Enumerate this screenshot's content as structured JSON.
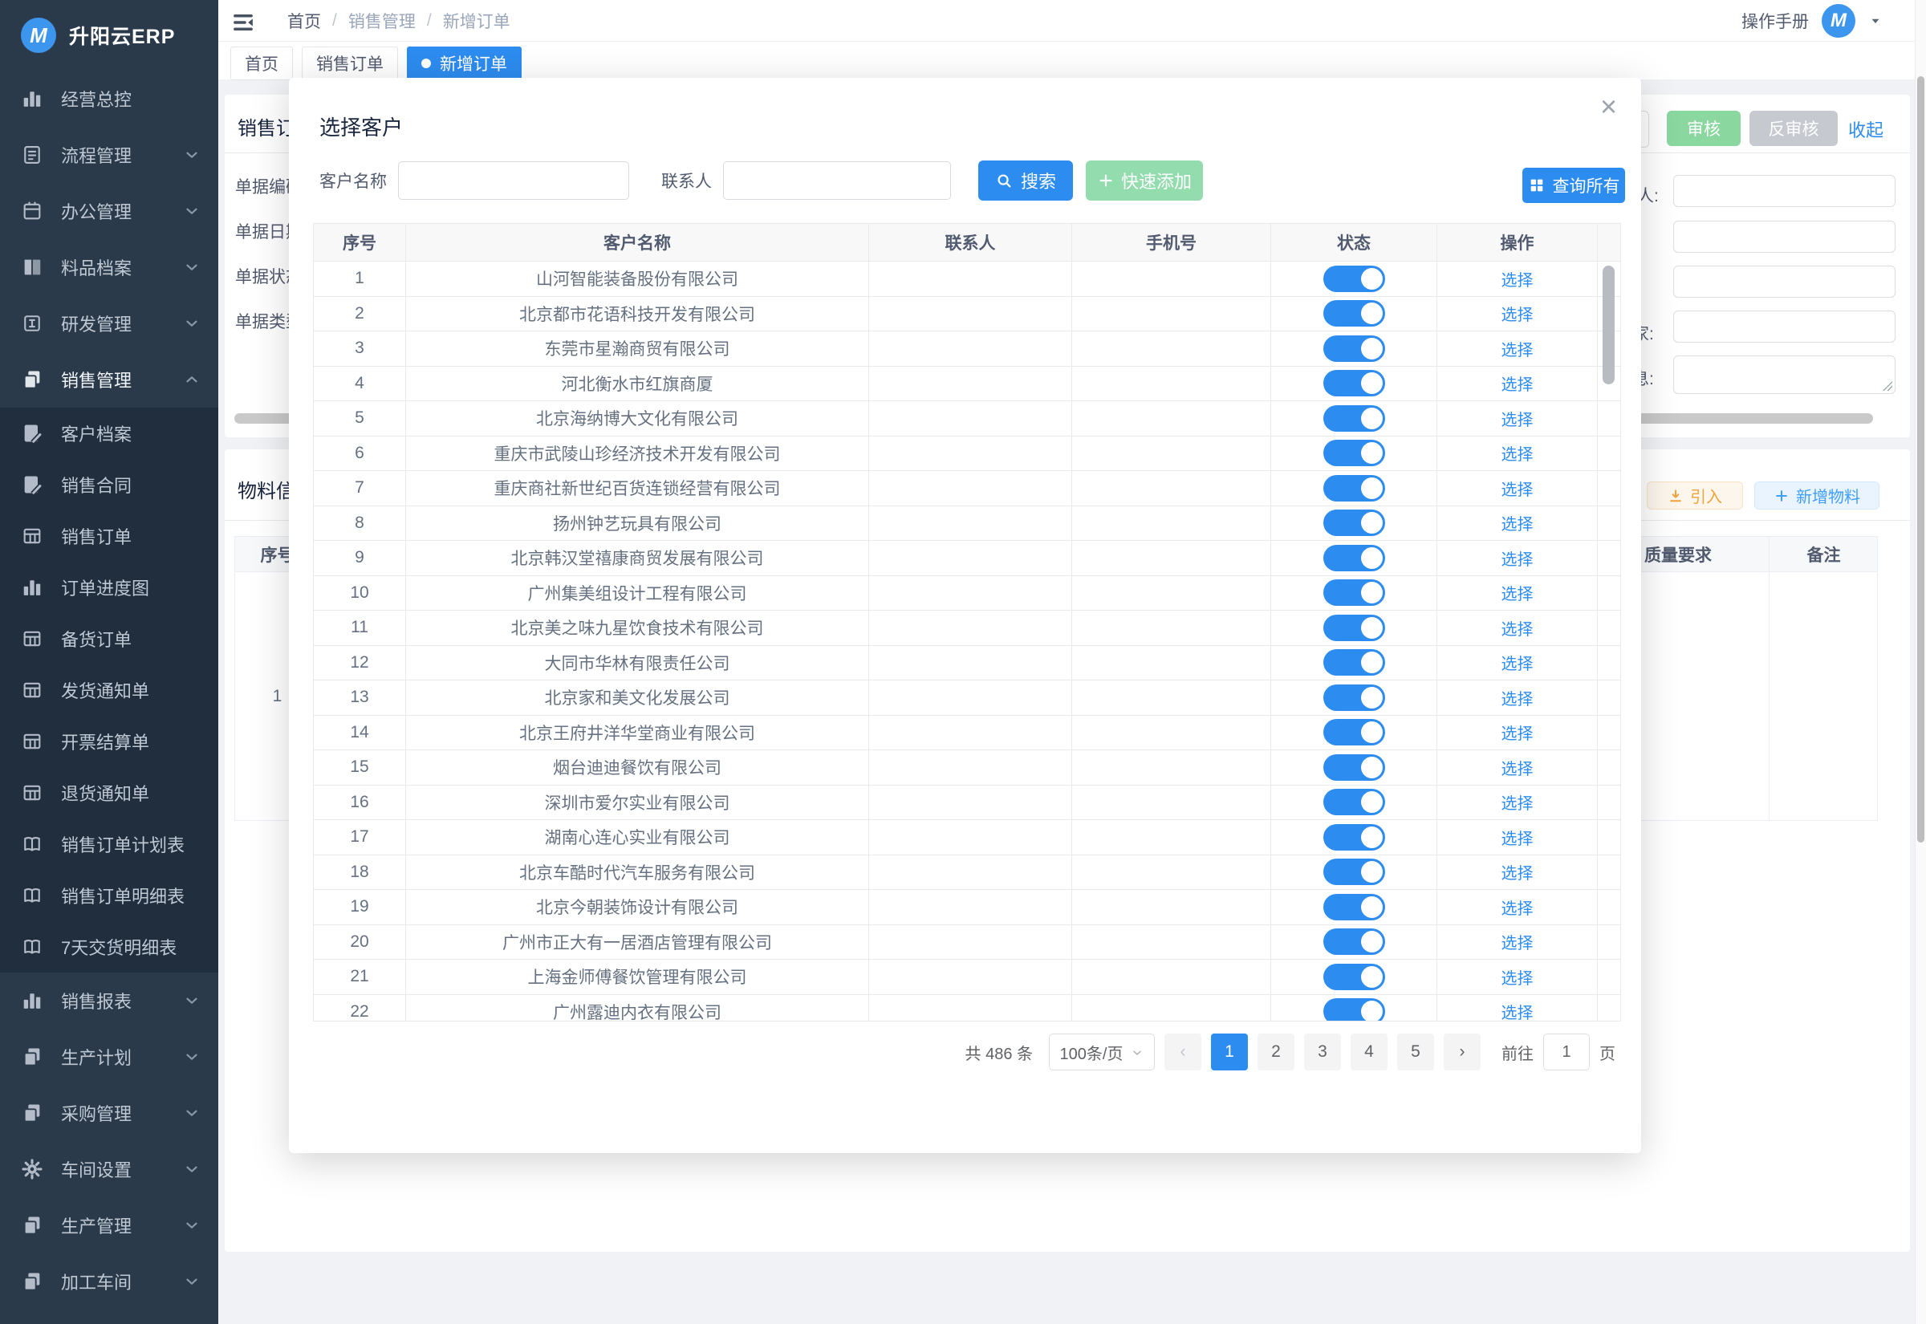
{
  "app": {
    "title": "升阳云ERP",
    "logo_letter": "M"
  },
  "colors": {
    "primary": "#2d8cf0",
    "sidebar_bg": "#2b3a4a",
    "submenu_bg": "#202e3e",
    "audit_green": "#8bd7a0",
    "quick_add_green": "#92dcae",
    "gray_button": "#c6c9cf",
    "warning_plain": "#f0a43b",
    "info_plain": "#409eff",
    "toggle_on": "#2d8cf0"
  },
  "header": {
    "manual": "操作手册",
    "avatar_letter": "M"
  },
  "breadcrumb": {
    "items": [
      "首页",
      "销售管理",
      "新增订单"
    ],
    "sep": "/"
  },
  "tabs": [
    {
      "label": "首页",
      "active": false
    },
    {
      "label": "销售订单",
      "active": false
    },
    {
      "label": "新增订单",
      "active": true
    }
  ],
  "sidebar": {
    "items_top": [
      {
        "label": "经营总控",
        "icon": "chart-bar",
        "arrow": null,
        "active": false
      },
      {
        "label": "流程管理",
        "icon": "doc-flow",
        "arrow": "down",
        "active": false
      },
      {
        "label": "办公管理",
        "icon": "calendar",
        "arrow": "down",
        "active": false
      },
      {
        "label": "料品档案",
        "icon": "book",
        "arrow": "down",
        "active": false
      },
      {
        "label": "研发管理",
        "icon": "square-i",
        "arrow": "down",
        "active": false
      },
      {
        "label": "销售管理",
        "icon": "pages",
        "arrow": "up",
        "active": true
      }
    ],
    "submenu": [
      {
        "label": "客户档案",
        "icon": "doc-edit"
      },
      {
        "label": "销售合同",
        "icon": "doc-edit"
      },
      {
        "label": "销售订单",
        "icon": "table"
      },
      {
        "label": "订单进度图",
        "icon": "chart-bar"
      },
      {
        "label": "备货订单",
        "icon": "table"
      },
      {
        "label": "发货通知单",
        "icon": "table"
      },
      {
        "label": "开票结算单",
        "icon": "table"
      },
      {
        "label": "退货通知单",
        "icon": "table"
      },
      {
        "label": "销售订单计划表",
        "icon": "book-open"
      },
      {
        "label": "销售订单明细表",
        "icon": "book-open"
      },
      {
        "label": "7天交货明细表",
        "icon": "book-open"
      }
    ],
    "items_bottom": [
      {
        "label": "销售报表",
        "icon": "chart-bar",
        "arrow": "down"
      },
      {
        "label": "生产计划",
        "icon": "pages",
        "arrow": "down"
      },
      {
        "label": "采购管理",
        "icon": "pages",
        "arrow": "down"
      },
      {
        "label": "车间设置",
        "icon": "gear",
        "arrow": "down"
      },
      {
        "label": "生产管理",
        "icon": "pages",
        "arrow": "down"
      },
      {
        "label": "加工车间",
        "icon": "pages",
        "arrow": "down"
      }
    ]
  },
  "order_form": {
    "title": "销售订单",
    "field_labels": [
      "单据编码",
      "单据日期",
      "单据状态",
      "单据类型"
    ],
    "clipped_labels": [
      "人:",
      "家:",
      "息:"
    ],
    "audit": "审核",
    "unaudit": "反审核",
    "collapse": "收起"
  },
  "material_section": {
    "title": "物料信息",
    "import_label": "引入",
    "add_label": "新增物料",
    "col_seq": "序号",
    "col_quality": "质量要求",
    "col_remark": "备注",
    "row_no": "1"
  },
  "modal": {
    "title": "选择客户",
    "close_glyph": "×",
    "form": {
      "name_label": "客户名称",
      "name_value": "",
      "contact_label": "联系人",
      "contact_value": "",
      "search_label": "搜索",
      "quick_add_label": "快速添加",
      "query_all_label": "查询所有"
    },
    "table": {
      "headers": [
        "序号",
        "客户名称",
        "联系人",
        "手机号",
        "状态",
        "操作"
      ],
      "action_label": "选择",
      "rows": [
        "山河智能装备股份有限公司",
        "北京都市花语科技开发有限公司",
        "东莞市星瀚商贸有限公司",
        "河北衡水市红旗商厦",
        "北京海纳博大文化有限公司",
        "重庆市武陵山珍经济技术开发有限公司",
        "重庆商社新世纪百货连锁经营有限公司",
        "扬州钟艺玩具有限公司",
        "北京韩汉堂禧康商贸发展有限公司",
        "广州集美组设计工程有限公司",
        "北京美之味九星饮食技术有限公司",
        "大同市华林有限责任公司",
        "北京家和美文化发展公司",
        "北京王府井洋华堂商业有限公司",
        "烟台迪迪餐饮有限公司",
        "深圳市爱尔实业有限公司",
        "湖南心连心实业有限公司",
        "北京车酷时代汽车服务有限公司",
        "北京今朝装饰设计有限公司",
        "广州市正大有一居酒店管理有限公司",
        "上海金师傅餐饮管理有限公司",
        "广州露迪内衣有限公司"
      ],
      "status_on": true
    },
    "pagination": {
      "total": "共 486 条",
      "page_size": "100条/页",
      "prev": "‹",
      "next": "›",
      "pages": [
        "1",
        "2",
        "3",
        "4",
        "5"
      ],
      "active_page": "1",
      "goto_label": "前往",
      "goto_value": "1",
      "unit_label": "页"
    }
  }
}
